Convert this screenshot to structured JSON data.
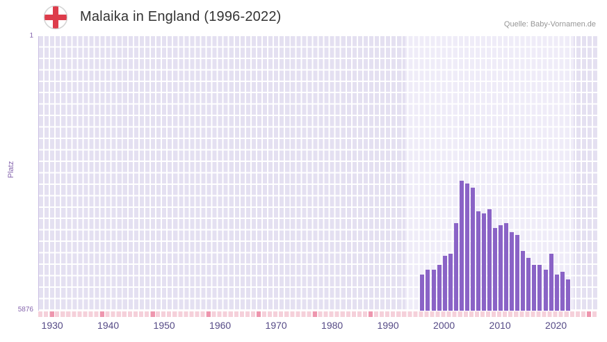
{
  "header": {
    "title": "Malaika in England (1996-2022)",
    "source": "Quelle: Baby-Vornamen.de"
  },
  "chart_data": {
    "type": "bar",
    "title": "Malaika in England (1996-2022)",
    "ylabel": "Platz",
    "xlabel": "",
    "y_axis": {
      "min": 1,
      "max": 5876,
      "inverted": true,
      "top_tick_label": "1",
      "bottom_tick_label": "5876"
    },
    "x_axis": {
      "range": [
        1928,
        2028
      ],
      "ticks": [
        1930,
        1940,
        1950,
        1960,
        1970,
        1980,
        1990,
        2000,
        2010,
        2020
      ]
    },
    "highlight_region": {
      "start": 1993.5,
      "end": 2023.5
    },
    "strip_marks": [
      1930,
      1939,
      1948,
      1958,
      1967,
      1977,
      1987,
      2026
    ],
    "years": [
      1996,
      1997,
      1998,
      1999,
      2000,
      2001,
      2002,
      2003,
      2004,
      2005,
      2006,
      2007,
      2008,
      2009,
      2010,
      2011,
      2012,
      2013,
      2014,
      2015,
      2016,
      2017,
      2018,
      2019,
      2020,
      2021,
      2022
    ],
    "values": [
      5100,
      5000,
      5000,
      4900,
      4700,
      4650,
      4000,
      3100,
      3150,
      3250,
      3750,
      3800,
      3700,
      4100,
      4050,
      4000,
      4200,
      4250,
      4600,
      4750,
      4900,
      4900,
      5000,
      4650,
      5100,
      5050,
      5200
    ],
    "grid": true,
    "legend": false,
    "colors": {
      "bar": "#8a63c6",
      "plot_bg": "#e4e0f1",
      "plot_bg_highlight": "#efecf8",
      "grid_line": "#ffffff",
      "axis_text": "#8565ad",
      "xtick_text": "#554a86",
      "strip": "#f5d0da",
      "strip_mark": "#ee96ae",
      "title_text": "#333333",
      "source_text": "#969696",
      "flag_red": "#dd3c4b"
    }
  }
}
